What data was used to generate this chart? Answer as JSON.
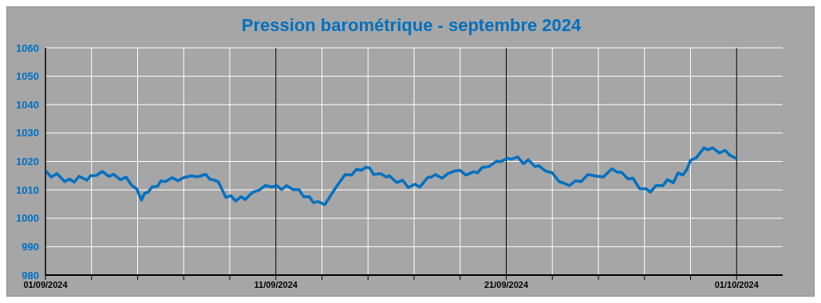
{
  "chart_data": {
    "type": "line",
    "title": "Pression barométrique - septembre 2024",
    "xlim": [
      "2024-09-01",
      "2024-10-03"
    ],
    "xticks": [
      {
        "value": "2024-09-01",
        "label": "01/09/2024"
      },
      {
        "value": "2024-09-03",
        "label": null
      },
      {
        "value": "2024-09-05",
        "label": null
      },
      {
        "value": "2024-09-07",
        "label": null
      },
      {
        "value": "2024-09-09",
        "label": null
      },
      {
        "value": "2024-09-11",
        "label": "11/09/2024"
      },
      {
        "value": "2024-09-13",
        "label": null
      },
      {
        "value": "2024-09-15",
        "label": null
      },
      {
        "value": "2024-09-17",
        "label": null
      },
      {
        "value": "2024-09-19",
        "label": null
      },
      {
        "value": "2024-09-21",
        "label": "21/09/2024"
      },
      {
        "value": "2024-09-23",
        "label": null
      },
      {
        "value": "2024-09-25",
        "label": null
      },
      {
        "value": "2024-09-27",
        "label": null
      },
      {
        "value": "2024-09-29",
        "label": null
      },
      {
        "value": "2024-10-01",
        "label": "01/10/2024"
      }
    ],
    "ylim": [
      980,
      1060
    ],
    "yticks": [
      980,
      990,
      1000,
      1010,
      1020,
      1030,
      1040,
      1050,
      1060
    ],
    "grid": true,
    "marker": "none",
    "line_style": "solid",
    "series": [
      {
        "color": "#0070c0",
        "x": [
          "2024-09-01T00:00",
          "2024-09-01T06:00",
          "2024-09-01T12:00",
          "2024-09-01T20:00",
          "2024-09-02T01:00",
          "2024-09-02T06:00",
          "2024-09-02T11:00",
          "2024-09-02T19:00",
          "2024-09-02T23:00",
          "2024-09-03T05:00",
          "2024-09-03T11:00",
          "2024-09-03T18:00",
          "2024-09-03T23:00",
          "2024-09-04T06:00",
          "2024-09-04T12:00",
          "2024-09-04T18:00",
          "2024-09-04T23:00",
          "2024-09-05T04:00",
          "2024-09-05T07:00",
          "2024-09-05T11:00",
          "2024-09-05T15:00",
          "2024-09-05T21:00",
          "2024-09-06T00:00",
          "2024-09-06T05:00",
          "2024-09-06T12:00",
          "2024-09-06T18:00",
          "2024-09-07T00:00",
          "2024-09-07T09:00",
          "2024-09-07T13:00",
          "2024-09-07T17:00",
          "2024-09-07T23:00",
          "2024-09-08T03:00",
          "2024-09-08T08:00",
          "2024-09-08T12:00",
          "2024-09-08T15:00",
          "2024-09-08T20:00",
          "2024-09-09T01:00",
          "2024-09-09T06:00",
          "2024-09-09T12:00",
          "2024-09-09T16:00",
          "2024-09-10T00:00",
          "2024-09-10T06:00",
          "2024-09-10T13:00",
          "2024-09-10T20:00",
          "2024-09-11T01:00",
          "2024-09-11T06:00",
          "2024-09-11T11:00",
          "2024-09-11T18:00",
          "2024-09-12T00:00",
          "2024-09-12T05:00",
          "2024-09-12T11:00",
          "2024-09-12T15:00",
          "2024-09-12T20:00",
          "2024-09-13T03:00",
          "2024-09-13T07:00",
          "2024-09-13T14:00",
          "2024-09-13T18:00",
          "2024-09-14T00:00",
          "2024-09-14T07:00",
          "2024-09-14T12:00",
          "2024-09-14T17:00",
          "2024-09-14T22:00",
          "2024-09-15T02:00",
          "2024-09-15T06:00",
          "2024-09-15T13:00",
          "2024-09-15T19:00",
          "2024-09-15T22:00",
          "2024-09-16T06:00",
          "2024-09-16T12:00",
          "2024-09-16T18:00",
          "2024-09-17T01:00",
          "2024-09-17T06:00",
          "2024-09-17T14:00",
          "2024-09-17T18:00",
          "2024-09-17T22:00",
          "2024-09-18T05:00",
          "2024-09-18T11:00",
          "2024-09-18T18:00",
          "2024-09-19T00:00",
          "2024-09-19T06:00",
          "2024-09-19T14:00",
          "2024-09-19T18:00",
          "2024-09-19T23:00",
          "2024-09-20T06:00",
          "2024-09-20T14:00",
          "2024-09-20T18:00",
          "2024-09-21T01:00",
          "2024-09-21T05:00",
          "2024-09-21T12:00",
          "2024-09-21T18:00",
          "2024-09-21T23:00",
          "2024-09-22T06:00",
          "2024-09-22T10:00",
          "2024-09-22T17:00",
          "2024-09-23T00:00",
          "2024-09-23T07:00",
          "2024-09-23T12:00",
          "2024-09-23T18:00",
          "2024-09-24T00:00",
          "2024-09-24T06:00",
          "2024-09-24T13:00",
          "2024-09-24T19:00",
          "2024-09-25T05:00",
          "2024-09-25T14:00",
          "2024-09-25T20:00",
          "2024-09-26T00:00",
          "2024-09-26T07:00",
          "2024-09-26T12:00",
          "2024-09-26T19:00",
          "2024-09-27T02:00",
          "2024-09-27T06:00",
          "2024-09-27T12:00",
          "2024-09-27T19:00",
          "2024-09-28T00:00",
          "2024-09-28T06:00",
          "2024-09-28T11:00",
          "2024-09-28T16:00",
          "2024-09-28T20:00",
          "2024-09-29T00:00",
          "2024-09-29T06:00",
          "2024-09-29T14:00",
          "2024-09-29T18:00",
          "2024-09-29T23:00",
          "2024-09-30T06:00",
          "2024-09-30T12:00",
          "2024-09-30T17:00",
          "2024-10-01T00:00"
        ],
        "values": [
          1016.8,
          1014.5,
          1015.7,
          1012.9,
          1013.8,
          1012.7,
          1014.8,
          1013.4,
          1015.0,
          1015.1,
          1016.5,
          1014.8,
          1015.5,
          1013.6,
          1014.5,
          1011.5,
          1010.4,
          1006.4,
          1008.7,
          1009.2,
          1011.0,
          1011.3,
          1013.1,
          1012.9,
          1014.3,
          1013.2,
          1014.3,
          1015.0,
          1014.6,
          1014.8,
          1015.5,
          1013.8,
          1013.4,
          1012.9,
          1010.8,
          1007.3,
          1008.0,
          1006.1,
          1007.6,
          1006.6,
          1009.2,
          1009.8,
          1011.5,
          1011.0,
          1011.5,
          1010.1,
          1011.5,
          1010.1,
          1010.1,
          1007.6,
          1007.6,
          1005.5,
          1005.9,
          1004.8,
          1006.9,
          1010.6,
          1012.5,
          1015.4,
          1015.2,
          1017.3,
          1016.9,
          1018.0,
          1017.6,
          1015.4,
          1015.7,
          1014.5,
          1015.0,
          1012.6,
          1013.4,
          1010.8,
          1012.0,
          1011.0,
          1014.3,
          1014.5,
          1015.4,
          1014.1,
          1015.7,
          1016.6,
          1016.9,
          1015.2,
          1016.4,
          1016.0,
          1017.9,
          1018.2,
          1020.1,
          1019.9,
          1021.1,
          1020.8,
          1021.6,
          1019.2,
          1020.6,
          1018.2,
          1018.5,
          1016.6,
          1016.0,
          1012.9,
          1012.4,
          1011.5,
          1013.2,
          1012.9,
          1015.4,
          1015.0,
          1014.5,
          1017.4,
          1016.2,
          1016.2,
          1013.8,
          1014.1,
          1010.4,
          1010.4,
          1009.2,
          1011.5,
          1011.5,
          1013.6,
          1012.5,
          1016.0,
          1015.2,
          1017.1,
          1020.4,
          1021.3,
          1024.8,
          1024.1,
          1024.8,
          1023.0,
          1023.9,
          1022.2,
          1021.0
        ]
      }
    ]
  }
}
